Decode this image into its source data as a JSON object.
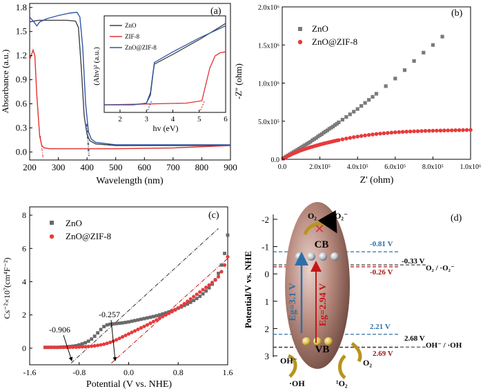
{
  "panels": {
    "a": {
      "label": "(a)",
      "xlabel": "Wavelength (nm)",
      "ylabel": "Absorbance (a.u.)",
      "xticks": [
        "200",
        "300",
        "400",
        "500",
        "600",
        "700",
        "800",
        "900"
      ],
      "yticks": [
        "0.0",
        "0.3",
        "0.6",
        "0.9",
        "1.2",
        "1.5",
        "1.8"
      ],
      "legend": [
        "ZnO",
        "ZIF-8",
        "ZnO@ZIF-8"
      ],
      "inset": {
        "xlabel": "hv (eV)",
        "ylabel": "(Ahv)² (a.u.)",
        "xticks": [
          "2",
          "3",
          "4",
          "5",
          "6"
        ]
      }
    },
    "b": {
      "label": "(b)",
      "xlabel": "Z' (ohm)",
      "ylabel": "-Z'' (ohm)",
      "xticks": [
        "0.0",
        "2.0x10⁵",
        "4.0x10⁵",
        "6.0x10⁵",
        "8.0x10⁵",
        "1.0x10⁶"
      ],
      "yticks": [
        "0.0",
        "5.0x10⁵",
        "1.0x10⁶",
        "1.5x10⁶",
        "2.0x10⁶"
      ],
      "legend": [
        "ZnO",
        "ZnO@ZIF-8"
      ]
    },
    "c": {
      "label": "(c)",
      "xlabel": "Potential (V vs. NHE)",
      "ylabel": "Cs⁻²×10⁷(cm⁴F⁻²)",
      "xticks": [
        "-1.6",
        "-0.8",
        "0.0",
        "0.8",
        "1.6"
      ],
      "yticks": [
        "0",
        "2",
        "4",
        "6",
        "8"
      ],
      "legend": [
        "ZnO",
        "ZnO@ZIF-8"
      ],
      "annotations": [
        "-0.906",
        "-0.257"
      ]
    },
    "d": {
      "label": "(d)",
      "ylabel": "Potential/V vs. NHE",
      "yticks": [
        "-2",
        "-1",
        "0",
        "1",
        "2",
        "3"
      ],
      "cb": "CB",
      "vb": "VB",
      "eg_blue": "Eg=3.1 V",
      "eg_red": "Eg=2.94 V",
      "levels": [
        "-0.81 V",
        "-0.26 V",
        "2.21 V",
        "2.69 V",
        "-0.33 V",
        "2.68 V"
      ],
      "couples": [
        "O₂ / ·O₂⁻",
        "OH⁻ / ·OH"
      ],
      "species": [
        "O₂",
        "·O₂⁻",
        "OH⁻",
        "·OH",
        "¹O₂",
        "O₂"
      ]
    }
  },
  "chart_data": [
    {
      "type": "line",
      "title": "",
      "xlabel": "Wavelength (nm)",
      "ylabel": "Absorbance (a.u.)",
      "xlim": [
        200,
        900
      ],
      "ylim": [
        -0.1,
        1.85
      ],
      "series": [
        {
          "name": "ZnO",
          "color": "#404040",
          "x": [
            200,
            215,
            230,
            250,
            270,
            300,
            330,
            360,
            370,
            380,
            390,
            400,
            410,
            430,
            500,
            700,
            900
          ],
          "y": [
            1.62,
            1.63,
            1.64,
            1.64,
            1.64,
            1.64,
            1.64,
            1.63,
            1.55,
            1.05,
            0.45,
            0.22,
            0.14,
            0.1,
            0.08,
            0.08,
            0.08
          ]
        },
        {
          "name": "ZIF-8",
          "color": "#e03030",
          "x": [
            200,
            212,
            218,
            225,
            235,
            242,
            250,
            270,
            350,
            500,
            700,
            900
          ],
          "y": [
            1.15,
            1.27,
            1.2,
            0.7,
            0.2,
            0.08,
            0.05,
            0.04,
            0.04,
            0.04,
            0.05,
            0.08
          ]
        },
        {
          "name": "ZnO@ZIF-8",
          "color": "#2f55a8",
          "x": [
            200,
            215,
            225,
            235,
            260,
            300,
            340,
            365,
            375,
            385,
            395,
            405,
            415,
            430,
            500,
            700,
            900
          ],
          "y": [
            1.68,
            1.62,
            1.57,
            1.62,
            1.66,
            1.7,
            1.73,
            1.74,
            1.68,
            1.3,
            0.6,
            0.25,
            0.16,
            0.12,
            0.09,
            0.09,
            0.09
          ]
        }
      ]
    },
    {
      "type": "line",
      "title": "",
      "xlabel": "hv (eV)",
      "ylabel": "(Ahv)² (a.u.)",
      "xlim": [
        1.4,
        6
      ],
      "ylim": [
        0,
        1
      ],
      "series": [
        {
          "name": "ZnO",
          "color": "#404040",
          "x": [
            1.4,
            2.5,
            3.0,
            3.15,
            3.25,
            3.3,
            4.0,
            5.0,
            6.0
          ],
          "y": [
            0.0,
            0.0,
            0.02,
            0.12,
            0.38,
            0.5,
            0.62,
            0.8,
            1.0
          ]
        },
        {
          "name": "ZIF-8",
          "color": "#e03030",
          "x": [
            1.4,
            3.0,
            4.5,
            5.1,
            5.25,
            5.4,
            5.6,
            5.8,
            6.0
          ],
          "y": [
            0.0,
            0.01,
            0.02,
            0.05,
            0.25,
            0.45,
            0.6,
            0.64,
            0.65
          ]
        },
        {
          "name": "ZnO@ZIF-8",
          "color": "#2f55a8",
          "x": [
            1.4,
            2.5,
            3.0,
            3.15,
            3.25,
            3.3,
            4.0,
            5.0,
            6.0
          ],
          "y": [
            0.0,
            0.0,
            0.02,
            0.15,
            0.4,
            0.52,
            0.65,
            0.82,
            0.97
          ]
        }
      ]
    },
    {
      "type": "scatter",
      "title": "",
      "xlabel": "Z' (ohm)",
      "ylabel": "-Z'' (ohm)",
      "xlim": [
        0,
        1000000
      ],
      "ylim": [
        0,
        2000000
      ],
      "series": [
        {
          "name": "ZnO",
          "color": "#7a7a7a",
          "x": [
            5000,
            10000,
            20000,
            30000,
            40000,
            50000,
            60000,
            70000,
            80000,
            90000,
            100000,
            110000,
            120000,
            130000,
            140000,
            150000,
            160000,
            170000,
            180000,
            190000,
            200000,
            210000,
            220000,
            230000,
            240000,
            250000,
            260000,
            270000,
            280000,
            290000,
            300000,
            320000,
            340000,
            360000,
            380000,
            400000,
            420000,
            440000,
            460000,
            480000,
            500000,
            550000,
            600000,
            650000,
            700000,
            750000,
            800000,
            850000
          ],
          "y": [
            10000,
            20000,
            35000,
            50000,
            65000,
            80000,
            95000,
            110000,
            125000,
            140000,
            155000,
            170000,
            185000,
            200000,
            215000,
            230000,
            250000,
            265000,
            280000,
            300000,
            315000,
            330000,
            350000,
            365000,
            380000,
            400000,
            415000,
            430000,
            450000,
            465000,
            485000,
            520000,
            555000,
            590000,
            625000,
            660000,
            700000,
            740000,
            780000,
            820000,
            860000,
            960000,
            1060000,
            1170000,
            1290000,
            1400000,
            1500000,
            1610000
          ]
        },
        {
          "name": "ZnO@ZIF-8",
          "color": "#e83a3a",
          "x": [
            5000,
            10000,
            20000,
            30000,
            40000,
            50000,
            60000,
            70000,
            80000,
            90000,
            100000,
            110000,
            120000,
            130000,
            140000,
            150000,
            160000,
            170000,
            180000,
            190000,
            200000,
            210000,
            220000,
            230000,
            240000,
            250000,
            260000,
            270000,
            280000,
            290000,
            300000,
            320000,
            340000,
            360000,
            380000,
            400000,
            420000,
            440000,
            460000,
            480000,
            500000,
            520000,
            540000,
            560000,
            580000,
            600000,
            620000,
            640000,
            660000,
            680000,
            700000,
            720000,
            740000,
            760000,
            780000,
            800000,
            820000,
            840000,
            860000,
            880000,
            900000,
            920000,
            940000,
            960000,
            980000,
            1000000
          ],
          "y": [
            8000,
            16000,
            30000,
            42000,
            54000,
            66000,
            78000,
            88000,
            98000,
            108000,
            118000,
            126000,
            134000,
            142000,
            150000,
            158000,
            165000,
            172000,
            179000,
            186000,
            193000,
            200000,
            206000,
            212000,
            218000,
            224000,
            230000,
            236000,
            242000,
            247000,
            252000,
            262000,
            272000,
            281000,
            290000,
            298000,
            306000,
            313000,
            320000,
            326000,
            332000,
            337000,
            342000,
            346000,
            350000,
            354000,
            357000,
            360000,
            363000,
            365000,
            367000,
            369000,
            371000,
            373000,
            374000,
            375000,
            376000,
            377000,
            378000,
            379000,
            380000,
            381000,
            382000,
            383000,
            384000,
            385000
          ]
        }
      ]
    },
    {
      "type": "scatter",
      "title": "",
      "xlabel": "Potential (V vs. NHE)",
      "ylabel": "Cs⁻²×10⁷(cm⁴F⁻²)",
      "xlim": [
        -1.6,
        1.6
      ],
      "ylim": [
        -1,
        8.5
      ],
      "series": [
        {
          "name": "ZnO",
          "color": "#6a6a6a",
          "x": [
            -1.35,
            -1.3,
            -1.25,
            -1.2,
            -1.15,
            -1.1,
            -1.05,
            -1.0,
            -0.95,
            -0.9,
            -0.85,
            -0.8,
            -0.75,
            -0.7,
            -0.65,
            -0.6,
            -0.55,
            -0.5,
            -0.45,
            -0.4,
            -0.35,
            -0.3,
            -0.25,
            -0.2,
            -0.15,
            -0.1,
            -0.05,
            0.0,
            0.05,
            0.1,
            0.15,
            0.2,
            0.25,
            0.3,
            0.35,
            0.4,
            0.45,
            0.5,
            0.55,
            0.6,
            0.65,
            0.7,
            0.75,
            0.8,
            0.85,
            0.9,
            0.95,
            1.0,
            1.05,
            1.1,
            1.15,
            1.2,
            1.25,
            1.3,
            1.35,
            1.4,
            1.45,
            1.5,
            1.55,
            1.6
          ],
          "y": [
            0.05,
            0.05,
            0.05,
            0.05,
            0.05,
            0.06,
            0.07,
            0.08,
            0.1,
            0.12,
            0.15,
            0.2,
            0.26,
            0.33,
            0.42,
            0.55,
            0.72,
            0.92,
            1.12,
            1.3,
            1.4,
            1.44,
            1.46,
            1.48,
            1.5,
            1.52,
            1.55,
            1.58,
            1.62,
            1.66,
            1.7,
            1.74,
            1.78,
            1.82,
            1.86,
            1.9,
            1.95,
            2.0,
            2.06,
            2.12,
            2.18,
            2.25,
            2.32,
            2.4,
            2.48,
            2.57,
            2.66,
            2.76,
            2.87,
            2.99,
            3.12,
            3.27,
            3.44,
            3.63,
            3.85,
            4.12,
            4.5,
            5.0,
            5.7,
            6.8
          ]
        },
        {
          "name": "ZnO@ZIF-8",
          "color": "#e83a3a",
          "x": [
            -1.35,
            -1.3,
            -1.25,
            -1.2,
            -1.15,
            -1.1,
            -1.05,
            -1.0,
            -0.95,
            -0.9,
            -0.85,
            -0.8,
            -0.75,
            -0.7,
            -0.65,
            -0.6,
            -0.55,
            -0.5,
            -0.45,
            -0.4,
            -0.35,
            -0.3,
            -0.25,
            -0.2,
            -0.15,
            -0.1,
            -0.05,
            0.0,
            0.05,
            0.1,
            0.15,
            0.2,
            0.25,
            0.3,
            0.35,
            0.4,
            0.45,
            0.5,
            0.55,
            0.6,
            0.65,
            0.7,
            0.75,
            0.8,
            0.85,
            0.9,
            0.95,
            1.0,
            1.05,
            1.1,
            1.15,
            1.2,
            1.25,
            1.3,
            1.35,
            1.4,
            1.45,
            1.5,
            1.55,
            1.6
          ],
          "y": [
            0.05,
            0.05,
            0.05,
            0.05,
            0.05,
            0.05,
            0.05,
            0.05,
            0.05,
            0.06,
            0.06,
            0.07,
            0.08,
            0.09,
            0.1,
            0.12,
            0.14,
            0.17,
            0.2,
            0.24,
            0.29,
            0.35,
            0.42,
            0.5,
            0.59,
            0.68,
            0.77,
            0.86,
            0.95,
            1.04,
            1.13,
            1.22,
            1.31,
            1.4,
            1.5,
            1.6,
            1.7,
            1.8,
            1.9,
            2.0,
            2.1,
            2.2,
            2.3,
            2.42,
            2.55,
            2.68,
            2.82,
            2.96,
            3.1,
            3.24,
            3.38,
            3.52,
            3.66,
            3.8,
            3.95,
            4.1,
            4.3,
            4.6,
            5.0,
            5.5
          ]
        }
      ]
    },
    {
      "type": "diagram",
      "title": "",
      "ylabel": "Potential/V vs. NHE",
      "ylim": [
        -2.5,
        3
      ],
      "levels": [
        {
          "label": "-0.81 V",
          "value": -0.81,
          "color": "#2f6fa8"
        },
        {
          "label": "-0.26 V",
          "value": -0.26,
          "color": "#a01818"
        },
        {
          "label": "-0.33 V",
          "value": -0.33,
          "color": "#404040"
        },
        {
          "label": "2.21 V",
          "value": 2.21,
          "color": "#2f6fa8"
        },
        {
          "label": "2.69 V",
          "value": 2.69,
          "color": "#a01818"
        },
        {
          "label": "2.68 V",
          "value": 2.68,
          "color": "#404040"
        }
      ]
    }
  ]
}
